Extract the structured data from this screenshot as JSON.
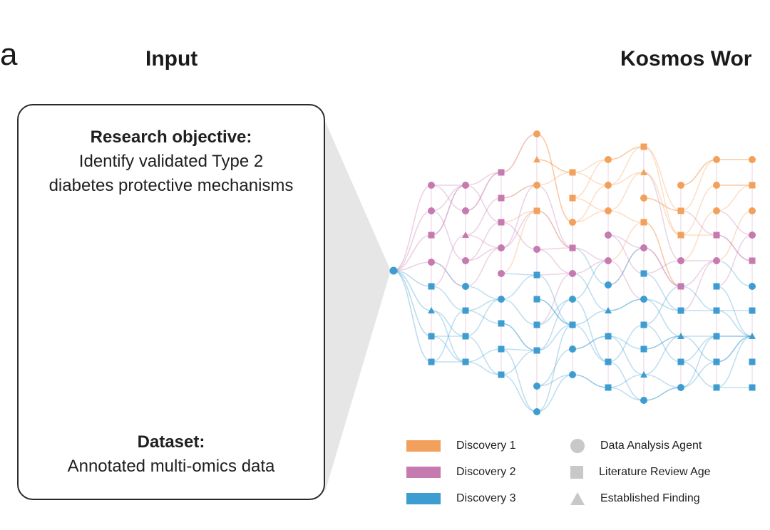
{
  "panel_letter": "a",
  "titles": {
    "input": "Input",
    "workflow": "Kosmos Wor"
  },
  "input_box": {
    "objective_label": "Research objective:",
    "objective_line1": "Identify validated Type 2",
    "objective_line2": "diabetes protective mechanisms",
    "dataset_label": "Dataset:",
    "dataset_text": "Annotated multi-omics data"
  },
  "colors": {
    "discovery1": "#f2a05b",
    "discovery2": "#c57ab0",
    "discovery3": "#3d9cd0",
    "cluster_brown": "#8b3a2a",
    "cluster_green": "#5e9e6e",
    "cluster_pink": "#d9a6c8",
    "shape_gray": "#c8c8c8"
  },
  "legend": {
    "discoveries": [
      {
        "label": "Discovery 1",
        "color": "#f2a05b"
      },
      {
        "label": "Discovery 2",
        "color": "#c57ab0"
      },
      {
        "label": "Discovery 3",
        "color": "#3d9cd0"
      }
    ],
    "agents": [
      {
        "label": "Data Analysis Agent",
        "shape": "circle"
      },
      {
        "label": "Literature Review Age",
        "shape": "square"
      },
      {
        "label": "Established Finding",
        "shape": "triangle"
      }
    ]
  }
}
